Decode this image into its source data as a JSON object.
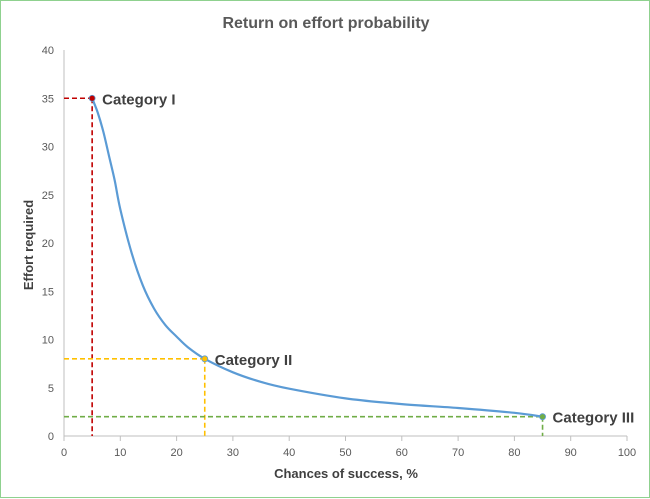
{
  "chart_data": {
    "type": "line",
    "title": "Return on effort probability",
    "xlabel": "Chances of success, %",
    "ylabel": "Effort required",
    "xlim": [
      0,
      100
    ],
    "ylim": [
      0,
      40
    ],
    "xticks": [
      0,
      10,
      20,
      30,
      40,
      50,
      60,
      70,
      80,
      90,
      100
    ],
    "yticks": [
      0,
      5,
      10,
      15,
      20,
      25,
      30,
      35,
      40
    ],
    "grid": false,
    "legend": "none",
    "series": [
      {
        "color": "#5b9bd5",
        "x": [
          5,
          6,
          7,
          8,
          9,
          10,
          12,
          14,
          16,
          18,
          20,
          22,
          25,
          30,
          35,
          40,
          50,
          60,
          70,
          80,
          85
        ],
        "y": [
          35,
          33.5,
          31.5,
          29,
          26.5,
          23.5,
          19,
          15.6,
          13.2,
          11.5,
          10.3,
          9.2,
          8,
          6.6,
          5.6,
          4.9,
          3.9,
          3.3,
          2.9,
          2.4,
          2
        ]
      }
    ],
    "points": [
      {
        "label": "Category I",
        "x": 5,
        "y": 35,
        "color": "#c00000"
      },
      {
        "label": "Category II",
        "x": 25,
        "y": 8,
        "color": "#ffc000"
      },
      {
        "label": "Category III",
        "x": 85,
        "y": 2,
        "color": "#70ad47"
      }
    ]
  }
}
